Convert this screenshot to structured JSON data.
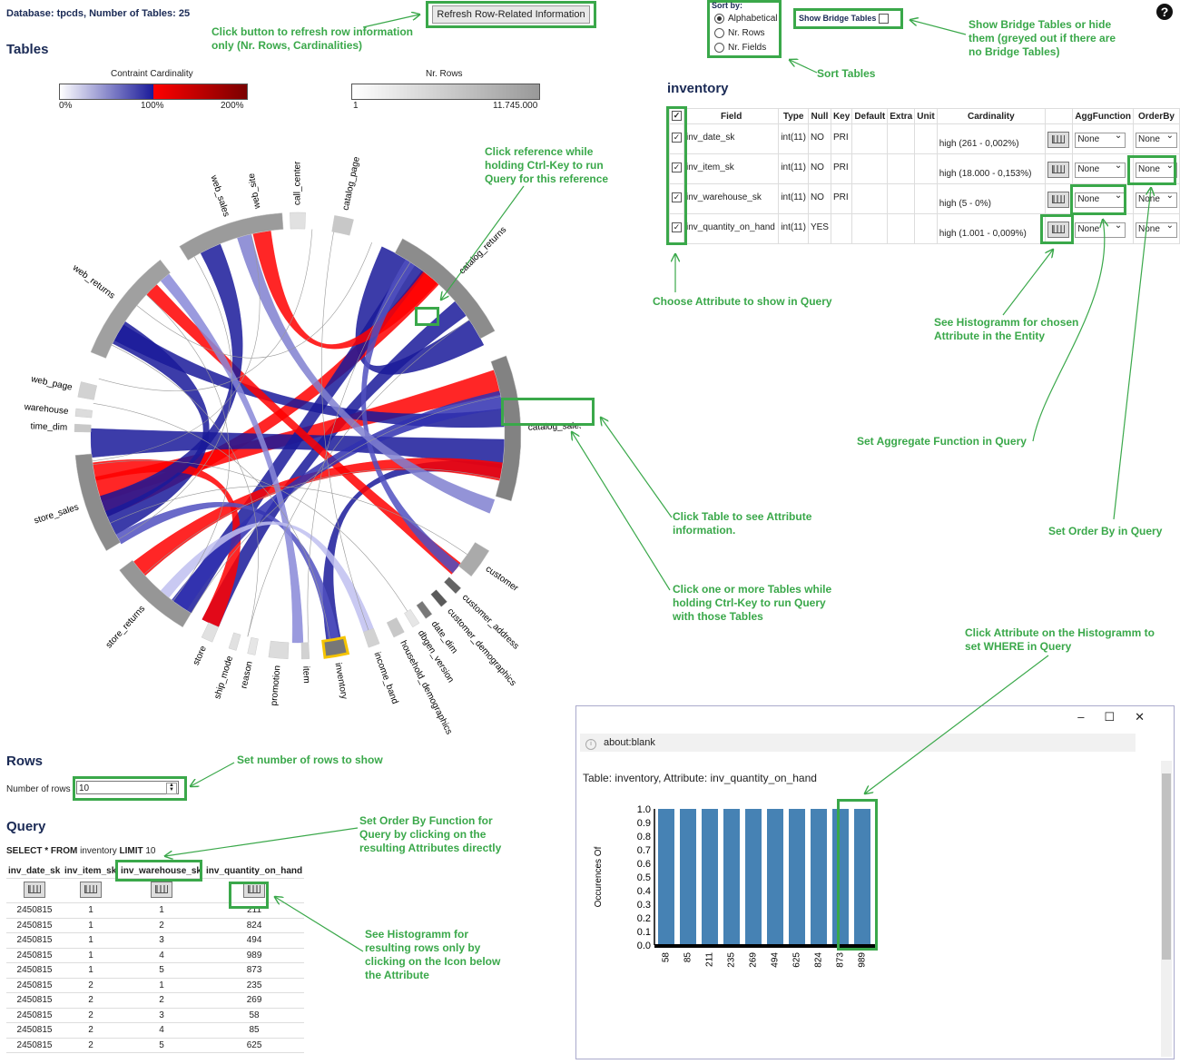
{
  "header": {
    "db_info": "Database: tpcds, Number of Tables: 25",
    "refresh_button": "Refresh Row-Related Information",
    "tables_title": "Tables",
    "help_icon": "question-icon"
  },
  "legends": {
    "constraint_title": "Contraint Cardinality",
    "constraint_ticks": [
      "0%",
      "100%",
      "200%"
    ],
    "rows_title": "Nr. Rows",
    "rows_ticks": [
      "1",
      "11.745.000"
    ]
  },
  "sort": {
    "label": "Sort by:",
    "options": [
      "Alphabetical",
      "Nr. Rows",
      "Nr. Fields"
    ],
    "selected": "Alphabetical",
    "bridge_label": "Show Bridge Tables"
  },
  "chord_tables": [
    "web_site",
    "call_center",
    "catalog_page",
    "catalog_returns",
    "catalog_sales",
    "customer",
    "customer_address",
    "customer_demographics",
    "date_dim",
    "dbgen_version",
    "household_demographics",
    "income_band",
    "inventory",
    "item",
    "promotion",
    "reason",
    "ship_mode",
    "store",
    "store_returns",
    "store_sales",
    "time_dim",
    "warehouse",
    "web_page",
    "web_returns",
    "web_sales"
  ],
  "entity": {
    "title": "inventory",
    "columns": [
      "Field",
      "Type",
      "Null",
      "Key",
      "Default",
      "Extra",
      "Unit",
      "Cardinality",
      "",
      "AggFunction",
      "OrderBy"
    ],
    "rows": [
      {
        "field": "inv_date_sk",
        "type": "int(11)",
        "null": "NO",
        "key": "PRI",
        "card": "high (261 - 0,002%)",
        "agg": "None",
        "order": "None"
      },
      {
        "field": "inv_item_sk",
        "type": "int(11)",
        "null": "NO",
        "key": "PRI",
        "card": "high (18.000 - 0,153%)",
        "agg": "None",
        "order": "None"
      },
      {
        "field": "inv_warehouse_sk",
        "type": "int(11)",
        "null": "NO",
        "key": "PRI",
        "card": "high (5 - 0%)",
        "agg": "None",
        "order": "None"
      },
      {
        "field": "inv_quantity_on_hand",
        "type": "int(11)",
        "null": "YES",
        "key": "",
        "card": "high (1.001 - 0,009%)",
        "agg": "None",
        "order": "None"
      }
    ]
  },
  "rows_section": {
    "title": "Rows",
    "label": "Number of rows",
    "value": "10"
  },
  "query": {
    "title": "Query",
    "sql_kw1": "SELECT * FROM",
    "sql_table": "inventory",
    "sql_kw2": "LIMIT",
    "sql_limit": "10",
    "headers": [
      "inv_date_sk",
      "inv_item_sk",
      "inv_warehouse_sk",
      "inv_quantity_on_hand"
    ],
    "rows": [
      [
        "2450815",
        "1",
        "1",
        "211"
      ],
      [
        "2450815",
        "1",
        "2",
        "824"
      ],
      [
        "2450815",
        "1",
        "3",
        "494"
      ],
      [
        "2450815",
        "1",
        "4",
        "989"
      ],
      [
        "2450815",
        "1",
        "5",
        "873"
      ],
      [
        "2450815",
        "2",
        "1",
        "235"
      ],
      [
        "2450815",
        "2",
        "2",
        "269"
      ],
      [
        "2450815",
        "2",
        "3",
        "58"
      ],
      [
        "2450815",
        "2",
        "4",
        "85"
      ],
      [
        "2450815",
        "2",
        "5",
        "625"
      ]
    ]
  },
  "popup": {
    "url": "about:blank",
    "title": "Table: inventory, Attribute: inv_quantity_on_hand",
    "ylabel": "Occurences Of"
  },
  "chart_data": {
    "type": "bar",
    "categories": [
      "58",
      "85",
      "211",
      "235",
      "269",
      "494",
      "625",
      "824",
      "873",
      "989"
    ],
    "values": [
      1,
      1,
      1,
      1,
      1,
      1,
      1,
      1,
      1,
      1
    ],
    "title": "",
    "xlabel": "",
    "ylabel": "Occurences Of",
    "ylim": [
      0,
      1.0
    ],
    "yticks": [
      "0.0",
      "0.1",
      "0.2",
      "0.3",
      "0.4",
      "0.5",
      "0.6",
      "0.7",
      "0.8",
      "0.9",
      "1.0"
    ],
    "color": "#4682b4"
  },
  "annotations": {
    "refresh": "Click button to refresh row information only (Nr. Rows, Cardinalities)",
    "sort": "Sort Tables",
    "bridge": "Show Bridge Tables or hide them (greyed out if there are no Bridge Tables)",
    "reference": "Click reference while holding Ctrl-Key to run Query for this reference",
    "choose_attr": "Choose Attribute to show in Query",
    "histogram_entity": "See Histogramm for chosen Attribute in the Entity",
    "agg": "Set Aggregate Function in Query",
    "order": "Set Order By in Query",
    "click_table": "Click Table to see Attribute information.",
    "multi_table": "Click one or more Tables while holding Ctrl-Key to run Query with those Tables",
    "hist_where": "Click Attribute on the Histogramm to set WHERE in Query",
    "rows_num": "Set number of rows to show",
    "order_func": "Set Order By Function for Query by clicking on the resulting Attributes directly",
    "hist_rows": "See Histogramm for resulting rows only by clicking on the Icon below the Attribute"
  }
}
